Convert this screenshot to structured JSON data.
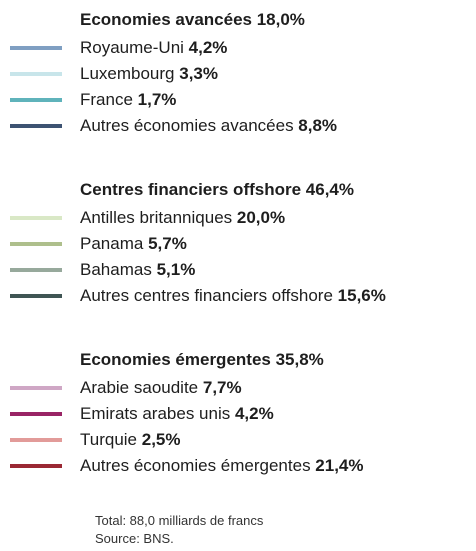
{
  "groups": [
    {
      "title": "Economies avancées",
      "value": "18,0%",
      "items": [
        {
          "name": "Royaume-Uni",
          "value": "4,2%",
          "color": "#7f9fc2"
        },
        {
          "name": "Luxembourg",
          "value": "3,3%",
          "color": "#c8e5ea"
        },
        {
          "name": "France",
          "value": "1,7%",
          "color": "#5fb3bb"
        },
        {
          "name": "Autres économies avancées",
          "value": "8,8%",
          "color": "#3d5372"
        }
      ]
    },
    {
      "title": "Centres financiers offshore",
      "value": "46,4%",
      "items": [
        {
          "name": "Antilles britanniques",
          "value": "20,0%",
          "color": "#d9e8c6"
        },
        {
          "name": "Panama",
          "value": "5,7%",
          "color": "#aebf8c"
        },
        {
          "name": "Bahamas",
          "value": "5,1%",
          "color": "#97a99c"
        },
        {
          "name": "Autres centres financiers offshore",
          "value": "15,6%",
          "color": "#3f5554"
        }
      ]
    },
    {
      "title": "Economies émergentes",
      "value": "35,8%",
      "items": [
        {
          "name": "Arabie saoudite",
          "value": "7,7%",
          "color": "#cfa7c5"
        },
        {
          "name": "Emirats arabes unis",
          "value": "4,2%",
          "color": "#992465"
        },
        {
          "name": "Turquie",
          "value": "2,5%",
          "color": "#e29b99"
        },
        {
          "name": "Autres économies émergentes",
          "value": "21,4%",
          "color": "#9a2833"
        }
      ]
    }
  ],
  "footer": {
    "total": "Total: 88,0 milliards de francs",
    "source": "Source: BNS."
  }
}
